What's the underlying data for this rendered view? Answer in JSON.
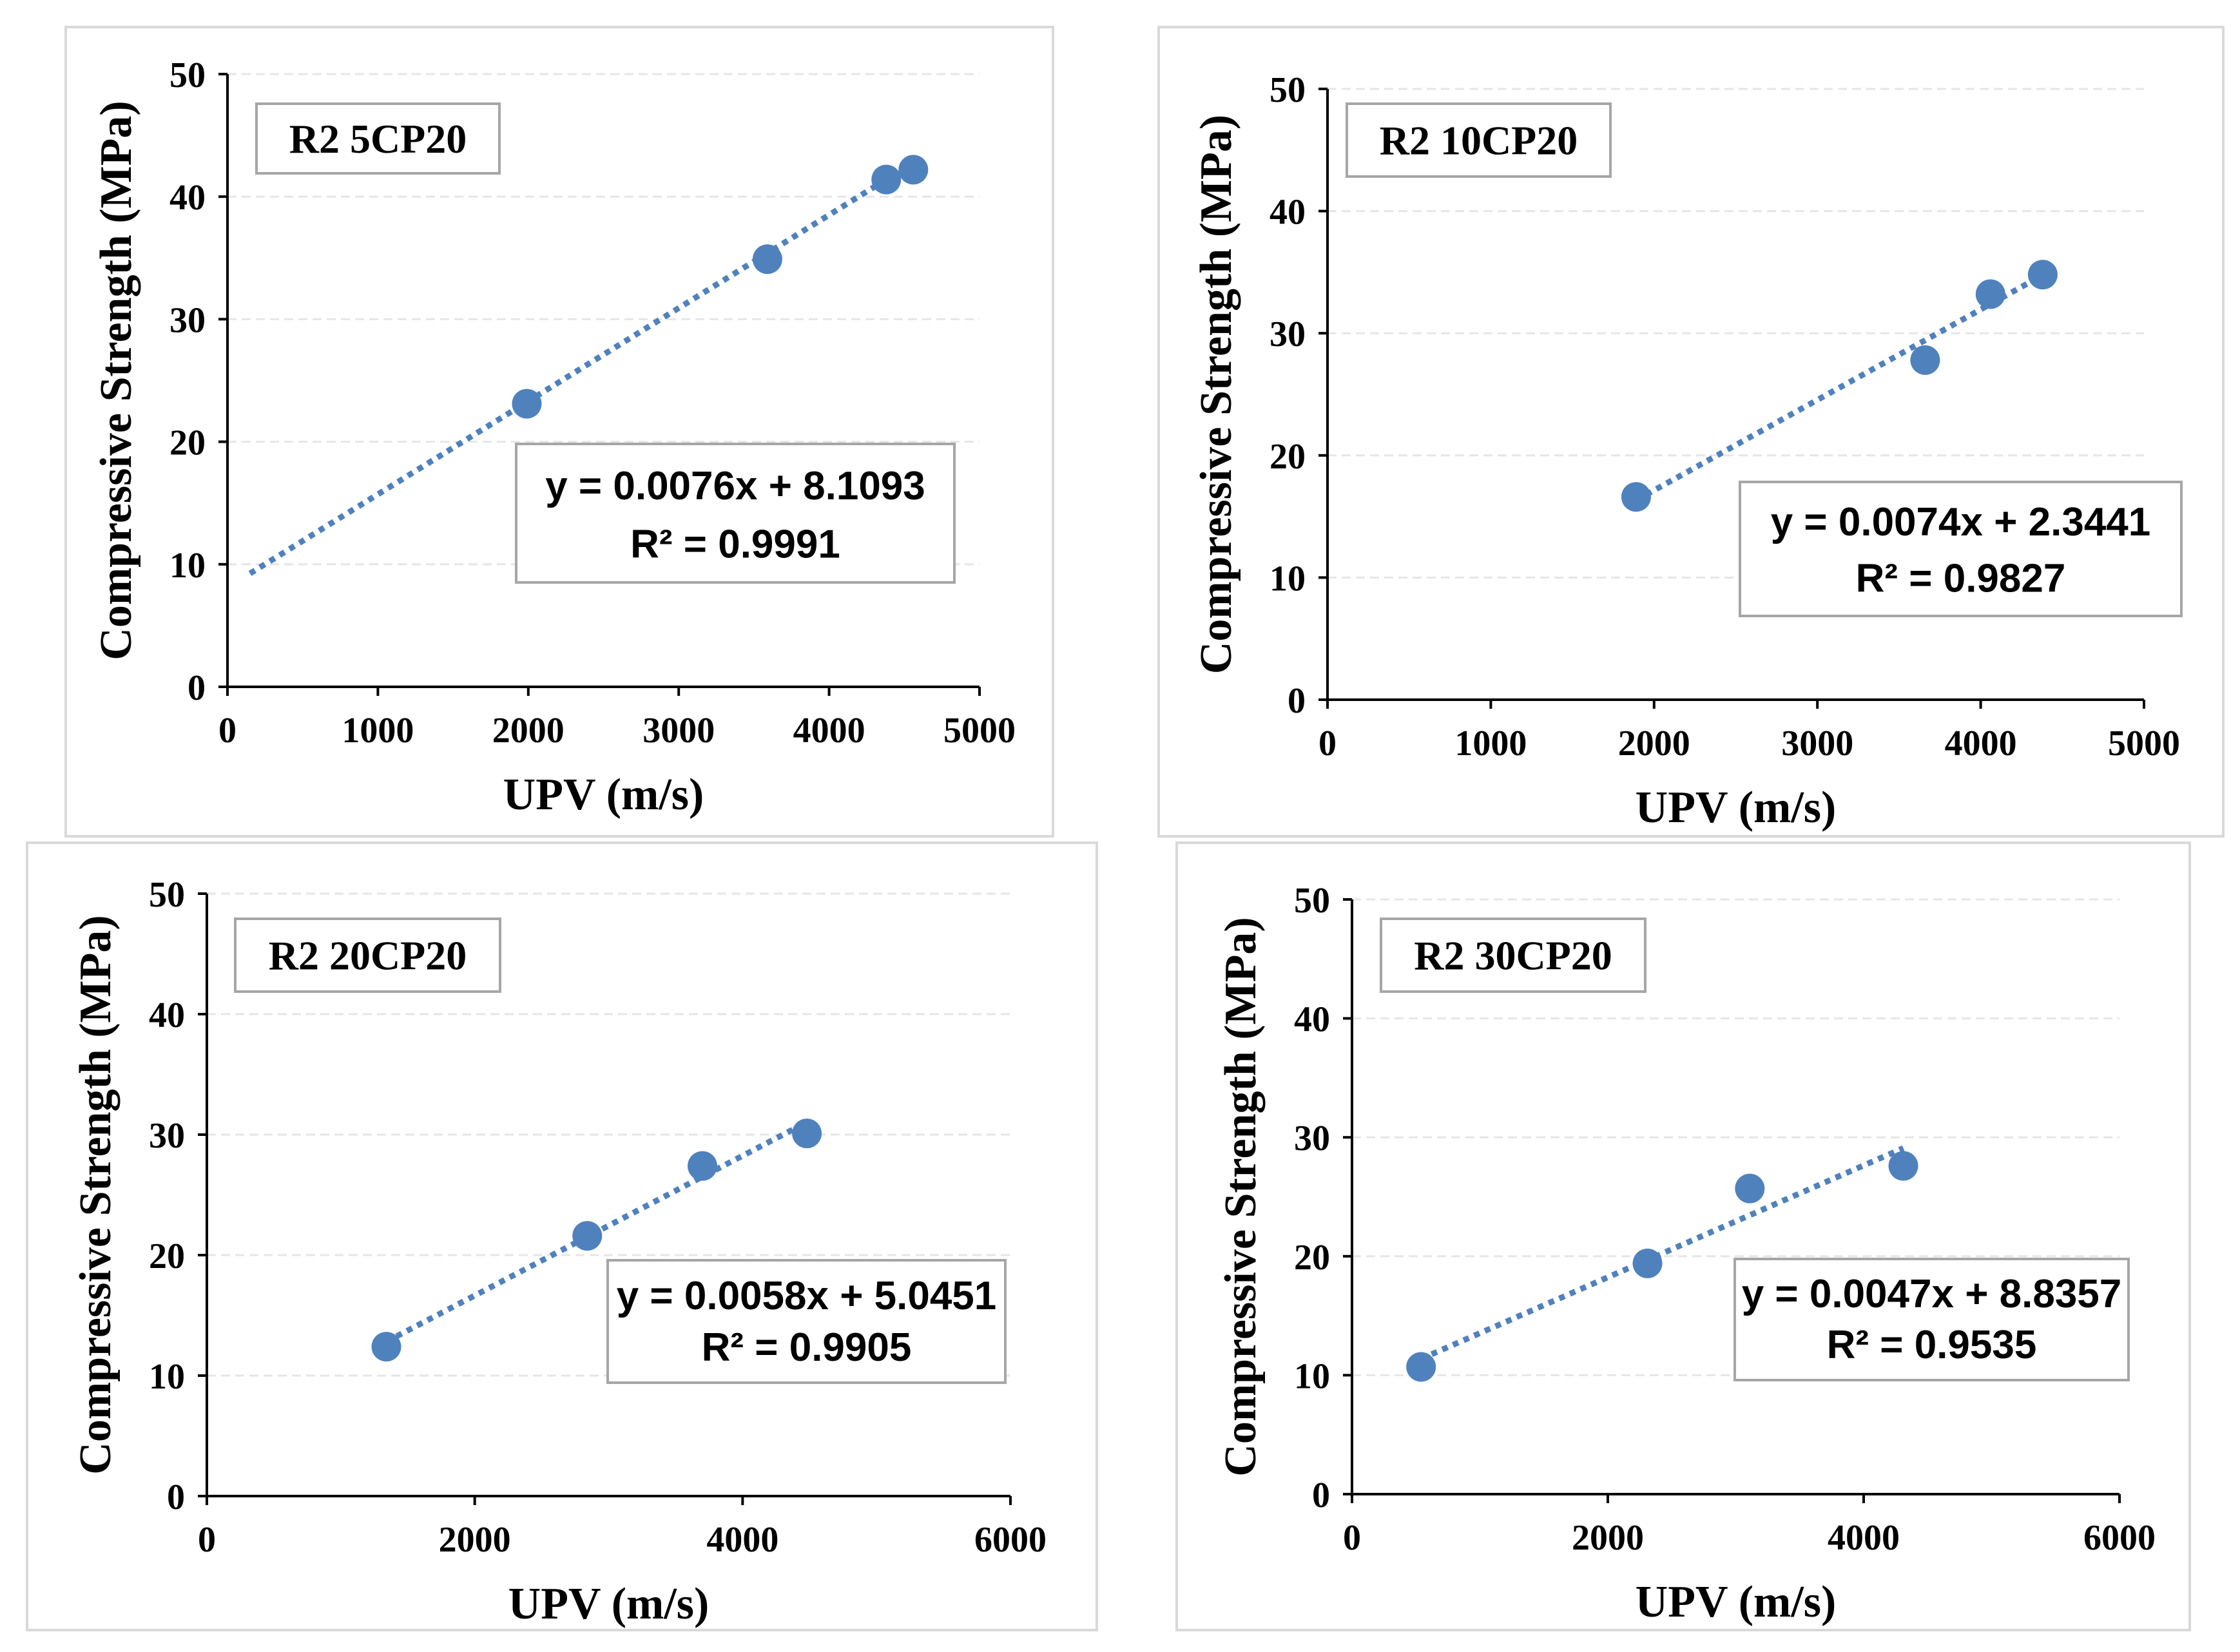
{
  "colors": {
    "marker": "#4f81bd",
    "trendline": "#4f81bd",
    "axis": "#000000",
    "gridline": "#e6e6e6",
    "box_border": "#a6a6a6",
    "panel_border": "#d9d9d9"
  },
  "chart_data": [
    {
      "type": "scatter",
      "title": "R2 5CP20",
      "xlabel": "UPV (m/s)",
      "ylabel": "Compressive Strength (MPa)",
      "xlim": [
        0,
        5000
      ],
      "ylim": [
        0,
        50
      ],
      "xticks": [
        0,
        1000,
        2000,
        3000,
        4000,
        5000
      ],
      "yticks": [
        0,
        10,
        20,
        30,
        40,
        50
      ],
      "xtick_labels": [
        "0",
        "1000",
        "2000",
        "3000",
        "4000",
        "5000"
      ],
      "ytick_labels": [
        "0",
        "10",
        "20",
        "30",
        "40",
        "50"
      ],
      "grid": "horizontal",
      "x": [
        1990,
        3590,
        4380,
        4560
      ],
      "y": [
        23.1,
        34.9,
        41.4,
        42.2
      ],
      "trendline": {
        "slope": 0.0076,
        "intercept": 8.1093,
        "x_range": [
          150,
          4480
        ]
      },
      "equation": "y = 0.0076x + 8.1093",
      "r2": "R² = 0.9991"
    },
    {
      "type": "scatter",
      "title": "R2 10CP20",
      "xlabel": "UPV (m/s)",
      "ylabel": "Compressive Strength (MPa)",
      "xlim": [
        0,
        5000
      ],
      "ylim": [
        0,
        50
      ],
      "xticks": [
        0,
        1000,
        2000,
        3000,
        4000,
        5000
      ],
      "yticks": [
        0,
        10,
        20,
        30,
        40,
        50
      ],
      "xtick_labels": [
        "0",
        "1000",
        "2000",
        "3000",
        "4000",
        "5000"
      ],
      "ytick_labels": [
        "0",
        "10",
        "20",
        "30",
        "40",
        "50"
      ],
      "grid": "horizontal",
      "x": [
        1890,
        3660,
        4060,
        4380
      ],
      "y": [
        16.6,
        27.8,
        33.2,
        34.8
      ],
      "trendline": {
        "slope": 0.0074,
        "intercept": 2.3441,
        "x_range": [
          1890,
          4380
        ]
      },
      "equation": "y = 0.0074x + 2.3441",
      "r2": "R² = 0.9827"
    },
    {
      "type": "scatter",
      "title": "R2 20CP20",
      "xlabel": "UPV (m/s)",
      "ylabel": "Compressive Strength (MPa)",
      "xlim": [
        0,
        6000
      ],
      "ylim": [
        0,
        50
      ],
      "xticks": [
        0,
        2000,
        4000,
        6000
      ],
      "yticks": [
        0,
        10,
        20,
        30,
        40,
        50
      ],
      "xtick_labels": [
        "0",
        "2000",
        "4000",
        "6000"
      ],
      "ytick_labels": [
        "0",
        "10",
        "20",
        "30",
        "40",
        "50"
      ],
      "grid": "horizontal",
      "x": [
        1340,
        2840,
        3700,
        4480
      ],
      "y": [
        12.4,
        21.6,
        27.4,
        30.1
      ],
      "trendline": {
        "slope": 0.0058,
        "intercept": 5.0451,
        "x_range": [
          1340,
          4480
        ]
      },
      "equation": "y = 0.0058x + 5.0451",
      "r2": "R² = 0.9905"
    },
    {
      "type": "scatter",
      "title": "R2 30CP20",
      "xlabel": "UPV (m/s)",
      "ylabel": "Compressive Strength (MPa)",
      "xlim": [
        0,
        6000
      ],
      "ylim": [
        0,
        50
      ],
      "xticks": [
        0,
        2000,
        4000,
        6000
      ],
      "yticks": [
        0,
        10,
        20,
        30,
        40,
        50
      ],
      "xtick_labels": [
        "0",
        "2000",
        "4000",
        "6000"
      ],
      "ytick_labels": [
        "0",
        "10",
        "20",
        "30",
        "40",
        "50"
      ],
      "grid": "horizontal",
      "x": [
        540,
        2310,
        3110,
        4310
      ],
      "y": [
        10.7,
        19.4,
        25.7,
        27.6
      ],
      "trendline": {
        "slope": 0.0047,
        "intercept": 8.8357,
        "x_range": [
          540,
          4310
        ]
      },
      "equation": "y = 0.0047x + 8.8357",
      "r2": "R² = 0.9535"
    }
  ]
}
